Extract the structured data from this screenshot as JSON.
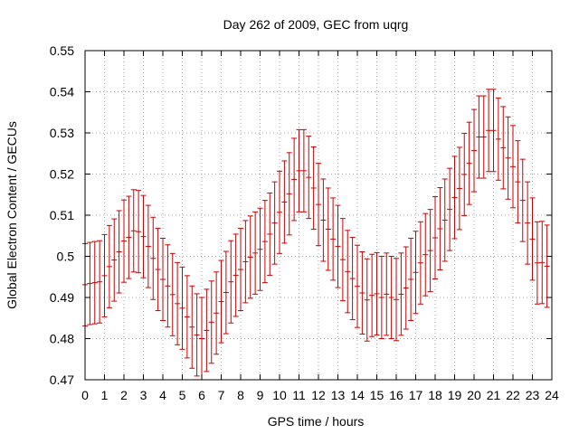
{
  "chart_data": {
    "type": "scatter",
    "title": "Day 262 of 2009, GEC from uqrg",
    "xlabel": "GPS time / hours",
    "ylabel": "Global Electron Content / GECUs",
    "xlim": [
      0,
      24
    ],
    "ylim": [
      0.47,
      0.55
    ],
    "xticks": [
      0,
      1,
      2,
      3,
      4,
      5,
      6,
      7,
      8,
      9,
      10,
      11,
      12,
      13,
      14,
      15,
      16,
      17,
      18,
      19,
      20,
      21,
      22,
      23,
      24
    ],
    "xtick_labels": [
      "0",
      "1",
      "2",
      "3",
      "4",
      "5",
      "6",
      "7",
      "8",
      "9",
      "10",
      "11",
      "12",
      "13",
      "14",
      "15",
      "16",
      "17",
      "18",
      "19",
      "20",
      "21",
      "22",
      "23",
      "24"
    ],
    "yticks": [
      0.47,
      0.48,
      0.49,
      0.5,
      0.51,
      0.52,
      0.53,
      0.54,
      0.55
    ],
    "ytick_labels": [
      "0.47",
      "0.48",
      "0.49",
      "0.5",
      "0.51",
      "0.52",
      "0.53",
      "0.54",
      "0.55"
    ],
    "grid": true,
    "series_color": "#cc0000",
    "error_half_width": 0.01,
    "points": [
      [
        0.0,
        0.4931
      ],
      [
        0.25,
        0.4934
      ],
      [
        0.5,
        0.4936
      ],
      [
        0.75,
        0.4938
      ],
      [
        1.0,
        0.4953
      ],
      [
        1.25,
        0.4975
      ],
      [
        1.5,
        0.4991
      ],
      [
        1.75,
        0.5011
      ],
      [
        2.0,
        0.5037
      ],
      [
        2.25,
        0.5046
      ],
      [
        2.5,
        0.5062
      ],
      [
        2.75,
        0.506
      ],
      [
        3.0,
        0.5048
      ],
      [
        3.25,
        0.5024
      ],
      [
        3.5,
        0.4995
      ],
      [
        3.75,
        0.4968
      ],
      [
        4.0,
        0.4944
      ],
      [
        4.25,
        0.4928
      ],
      [
        4.5,
        0.4907
      ],
      [
        4.75,
        0.4885
      ],
      [
        5.0,
        0.4874
      ],
      [
        5.25,
        0.4853
      ],
      [
        5.5,
        0.4828
      ],
      [
        5.75,
        0.4809
      ],
      [
        6.0,
        0.48
      ],
      [
        6.25,
        0.482
      ],
      [
        6.5,
        0.484
      ],
      [
        6.75,
        0.4862
      ],
      [
        7.0,
        0.489
      ],
      [
        7.25,
        0.4912
      ],
      [
        7.5,
        0.4938
      ],
      [
        7.75,
        0.4954
      ],
      [
        8.0,
        0.4968
      ],
      [
        8.25,
        0.4987
      ],
      [
        8.5,
        0.4998
      ],
      [
        8.75,
        0.5008
      ],
      [
        9.0,
        0.5017
      ],
      [
        9.25,
        0.5036
      ],
      [
        9.5,
        0.5054
      ],
      [
        9.75,
        0.5081
      ],
      [
        10.0,
        0.5107
      ],
      [
        10.25,
        0.5132
      ],
      [
        10.5,
        0.5152
      ],
      [
        10.75,
        0.5187
      ],
      [
        11.0,
        0.5208
      ],
      [
        11.25,
        0.5208
      ],
      [
        11.5,
        0.5192
      ],
      [
        11.75,
        0.5166
      ],
      [
        12.0,
        0.5126
      ],
      [
        12.25,
        0.5088
      ],
      [
        12.5,
        0.5066
      ],
      [
        12.75,
        0.5042
      ],
      [
        13.0,
        0.5024
      ],
      [
        13.25,
        0.4992
      ],
      [
        13.5,
        0.4963
      ],
      [
        13.75,
        0.4946
      ],
      [
        14.0,
        0.4927
      ],
      [
        14.25,
        0.4911
      ],
      [
        14.5,
        0.4894
      ],
      [
        14.75,
        0.4905
      ],
      [
        15.0,
        0.4909
      ],
      [
        15.25,
        0.49
      ],
      [
        15.5,
        0.4908
      ],
      [
        15.75,
        0.49
      ],
      [
        16.0,
        0.4895
      ],
      [
        16.25,
        0.4908
      ],
      [
        16.5,
        0.4923
      ],
      [
        16.75,
        0.4944
      ],
      [
        17.0,
        0.4961
      ],
      [
        17.25,
        0.4984
      ],
      [
        17.5,
        0.5004
      ],
      [
        17.75,
        0.5014
      ],
      [
        18.0,
        0.5045
      ],
      [
        18.25,
        0.5067
      ],
      [
        18.5,
        0.5088
      ],
      [
        18.75,
        0.5114
      ],
      [
        19.0,
        0.5143
      ],
      [
        19.25,
        0.5165
      ],
      [
        19.5,
        0.5199
      ],
      [
        19.75,
        0.5226
      ],
      [
        20.0,
        0.5257
      ],
      [
        20.25,
        0.529
      ],
      [
        20.5,
        0.529
      ],
      [
        20.75,
        0.5306
      ],
      [
        21.0,
        0.5306
      ],
      [
        21.25,
        0.5285
      ],
      [
        21.5,
        0.5264
      ],
      [
        21.75,
        0.5239
      ],
      [
        22.0,
        0.5218
      ],
      [
        22.25,
        0.5181
      ],
      [
        22.5,
        0.5136
      ],
      [
        22.75,
        0.5081
      ],
      [
        23.0,
        0.5042
      ],
      [
        23.25,
        0.4984
      ],
      [
        23.5,
        0.4985
      ],
      [
        23.75,
        0.4976
      ]
    ]
  }
}
